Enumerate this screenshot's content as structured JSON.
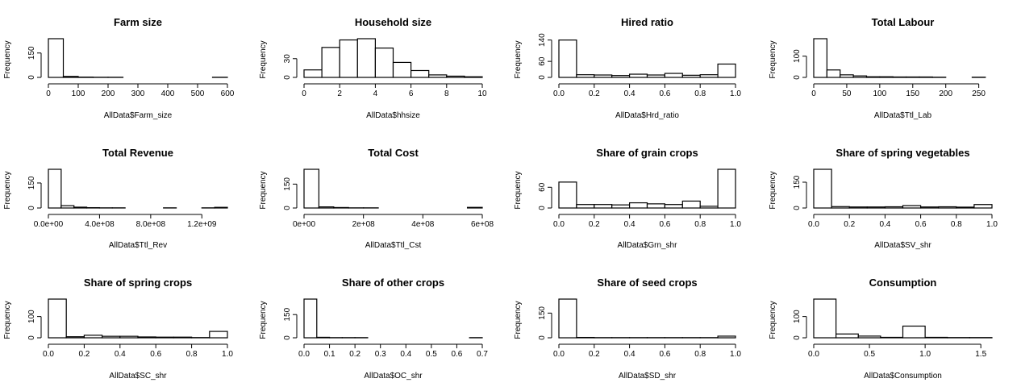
{
  "chart_data": [
    {
      "type": "bar",
      "title": "Farm size",
      "xlabel": "AllData$Farm_size",
      "ylabel": "Frequency",
      "xlim": [
        0,
        600
      ],
      "breaks": [
        0,
        50,
        100,
        150,
        200,
        250,
        300,
        350,
        400,
        450,
        500,
        550,
        600
      ],
      "values": [
        238,
        6,
        2,
        1,
        1,
        0,
        0,
        0,
        0,
        0,
        0,
        1
      ],
      "xticks": [
        0,
        100,
        200,
        300,
        400,
        500,
        600
      ],
      "xtick_labels": [
        "0",
        "100",
        "200",
        "300",
        "400",
        "500",
        "600"
      ],
      "yticks": [
        0,
        150
      ],
      "ytick_labels": [
        "0",
        "150"
      ],
      "ymax": 238
    },
    {
      "type": "bar",
      "title": "Household size",
      "xlabel": "AllData$hhsize",
      "ylabel": "Frequency",
      "xlim": [
        0,
        10
      ],
      "breaks": [
        0,
        1,
        2,
        3,
        4,
        5,
        6,
        7,
        8,
        9,
        10
      ],
      "values": [
        12,
        48,
        60,
        62,
        47,
        24,
        11,
        4,
        2,
        1
      ],
      "xticks": [
        0,
        2,
        4,
        6,
        8,
        10
      ],
      "xtick_labels": [
        "0",
        "2",
        "4",
        "6",
        "8",
        "10"
      ],
      "yticks": [
        0,
        30
      ],
      "ytick_labels": [
        "0",
        "30"
      ],
      "ymax": 62
    },
    {
      "type": "bar",
      "title": "Hired ratio",
      "xlabel": "AllData$Hrd_ratio",
      "ylabel": "Frequency",
      "xlim": [
        0,
        1
      ],
      "breaks": [
        0,
        0.1,
        0.2,
        0.3,
        0.4,
        0.5,
        0.6,
        0.7,
        0.8,
        0.9,
        1
      ],
      "values": [
        140,
        10,
        9,
        7,
        12,
        9,
        15,
        8,
        10,
        50
      ],
      "xticks": [
        0,
        0.2,
        0.4,
        0.6,
        0.8,
        1
      ],
      "xtick_labels": [
        "0.0",
        "0.2",
        "0.4",
        "0.6",
        "0.8",
        "1.0"
      ],
      "yticks": [
        0,
        60,
        140
      ],
      "ytick_labels": [
        "0",
        "60",
        "140"
      ],
      "ymax": 145
    },
    {
      "type": "bar",
      "title": "Total Labour",
      "xlabel": "AllData$Ttl_Lab",
      "ylabel": "Frequency",
      "xlim": [
        0,
        270
      ],
      "breaks": [
        0,
        20,
        40,
        60,
        80,
        100,
        120,
        140,
        160,
        180,
        200,
        220,
        240,
        260
      ],
      "values": [
        182,
        35,
        12,
        7,
        3,
        3,
        2,
        2,
        2,
        1,
        0,
        0,
        1
      ],
      "xticks": [
        0,
        50,
        100,
        150,
        200,
        250
      ],
      "xtick_labels": [
        "0",
        "50",
        "100",
        "150",
        "200",
        "250"
      ],
      "yticks": [
        0,
        100
      ],
      "ytick_labels": [
        "0",
        "100"
      ],
      "ymax": 182
    },
    {
      "type": "bar",
      "title": "Total Revenue",
      "xlabel": "AllData$Ttl_Rev",
      "ylabel": "Frequency",
      "xlim": [
        0,
        1400000000.0
      ],
      "breaks": [
        0,
        100000000.0,
        200000000.0,
        300000000.0,
        400000000.0,
        500000000.0,
        600000000.0,
        700000000.0,
        800000000.0,
        900000000.0,
        1000000000.0,
        1100000000.0,
        1200000000.0,
        1300000000.0,
        1400000000.0
      ],
      "values": [
        232,
        14,
        5,
        2,
        1,
        1,
        0,
        0,
        0,
        1,
        0,
        0,
        1,
        4
      ],
      "xticks": [
        0,
        400000000.0,
        800000000.0,
        1200000000.0
      ],
      "xtick_labels": [
        "0.0e+00",
        "4.0e+08",
        "8.0e+08",
        "1.2e+09"
      ],
      "yticks": [
        0,
        150
      ],
      "ytick_labels": [
        "0",
        "150"
      ],
      "ymax": 232
    },
    {
      "type": "bar",
      "title": "Total Cost",
      "xlabel": "AllData$Ttl_Cst",
      "ylabel": "Frequency",
      "xlim": [
        0,
        600000000.0
      ],
      "breaks": [
        0,
        50000000.0,
        100000000.0,
        150000000.0,
        200000000.0,
        250000000.0,
        300000000.0,
        350000000.0,
        400000000.0,
        450000000.0,
        500000000.0,
        550000000.0,
        600000000.0
      ],
      "values": [
        243,
        7,
        3,
        1,
        1,
        0,
        0,
        0,
        0,
        0,
        0,
        4
      ],
      "xticks": [
        0,
        200000000.0,
        400000000.0,
        600000000.0
      ],
      "xtick_labels": [
        "0e+00",
        "2e+08",
        "4e+08",
        "6e+08"
      ],
      "yticks": [
        0,
        150
      ],
      "ytick_labels": [
        "0",
        "150"
      ],
      "ymax": 243
    },
    {
      "type": "bar",
      "title": "Share of grain crops",
      "xlabel": "AllData$Grn_shr",
      "ylabel": "Frequency",
      "xlim": [
        0,
        1
      ],
      "breaks": [
        0,
        0.1,
        0.2,
        0.3,
        0.4,
        0.5,
        0.6,
        0.7,
        0.8,
        0.9,
        1
      ],
      "values": [
        75,
        10,
        10,
        9,
        15,
        12,
        10,
        20,
        5,
        112
      ],
      "xticks": [
        0,
        0.2,
        0.4,
        0.6,
        0.8,
        1
      ],
      "xtick_labels": [
        "0.0",
        "0.2",
        "0.4",
        "0.6",
        "0.8",
        "1.0"
      ],
      "yticks": [
        0,
        60
      ],
      "ytick_labels": [
        "0",
        "60"
      ],
      "ymax": 112
    },
    {
      "type": "bar",
      "title": "Share of spring vegetables",
      "xlabel": "AllData$SV_shr",
      "ylabel": "Frequency",
      "xlim": [
        0,
        1
      ],
      "breaks": [
        0,
        0.1,
        0.2,
        0.3,
        0.4,
        0.5,
        0.6,
        0.7,
        0.8,
        0.9,
        1
      ],
      "values": [
        225,
        8,
        6,
        6,
        7,
        14,
        6,
        7,
        5,
        20
      ],
      "xticks": [
        0,
        0.2,
        0.4,
        0.6,
        0.8,
        1
      ],
      "xtick_labels": [
        "0.0",
        "0.2",
        "0.4",
        "0.6",
        "0.8",
        "1.0"
      ],
      "yticks": [
        0,
        150
      ],
      "ytick_labels": [
        "0",
        "150"
      ],
      "ymax": 225
    },
    {
      "type": "bar",
      "title": "Share of spring crops",
      "xlabel": "AllData$SC_shr",
      "ylabel": "Frequency",
      "xlim": [
        0,
        1
      ],
      "breaks": [
        0,
        0.1,
        0.2,
        0.3,
        0.4,
        0.5,
        0.6,
        0.7,
        0.8,
        0.9,
        1
      ],
      "values": [
        182,
        5,
        12,
        7,
        7,
        4,
        3,
        3,
        1,
        30
      ],
      "xticks": [
        0,
        0.2,
        0.4,
        0.6,
        0.8,
        1
      ],
      "xtick_labels": [
        "0.0",
        "0.2",
        "0.4",
        "0.6",
        "0.8",
        "1.0"
      ],
      "yticks": [
        0,
        100
      ],
      "ytick_labels": [
        "0",
        "100"
      ],
      "ymax": 182
    },
    {
      "type": "bar",
      "title": "Share of other crops",
      "xlabel": "AllData$OC_shr",
      "ylabel": "Frequency",
      "xlim": [
        0,
        0.7
      ],
      "breaks": [
        0,
        0.05,
        0.1,
        0.15,
        0.2,
        0.25,
        0.3,
        0.35,
        0.4,
        0.45,
        0.5,
        0.55,
        0.6,
        0.65,
        0.7
      ],
      "values": [
        250,
        3,
        1,
        1,
        1,
        0,
        0,
        0,
        0,
        0,
        0,
        0,
        0,
        1
      ],
      "xticks": [
        0,
        0.1,
        0.2,
        0.3,
        0.4,
        0.5,
        0.6,
        0.7
      ],
      "xtick_labels": [
        "0.0",
        "0.1",
        "0.2",
        "0.3",
        "0.4",
        "0.5",
        "0.6",
        "0.7"
      ],
      "yticks": [
        0,
        150
      ],
      "ytick_labels": [
        "0",
        "150"
      ],
      "ymax": 250
    },
    {
      "type": "bar",
      "title": "Share of seed crops",
      "xlabel": "AllData$SD_shr",
      "ylabel": "Frequency",
      "xlim": [
        0,
        1
      ],
      "breaks": [
        0,
        0.1,
        0.2,
        0.3,
        0.4,
        0.5,
        0.6,
        0.7,
        0.8,
        0.9,
        1
      ],
      "values": [
        235,
        2,
        1,
        1,
        1,
        1,
        1,
        1,
        1,
        10
      ],
      "xticks": [
        0,
        0.2,
        0.4,
        0.6,
        0.8,
        1
      ],
      "xtick_labels": [
        "0.0",
        "0.2",
        "0.4",
        "0.6",
        "0.8",
        "1.0"
      ],
      "yticks": [
        0,
        150
      ],
      "ytick_labels": [
        "0",
        "150"
      ],
      "ymax": 235
    },
    {
      "type": "bar",
      "title": "Consumption",
      "xlabel": "AllData$Consumption",
      "ylabel": "Frequency",
      "xlim": [
        0,
        1.6
      ],
      "breaks": [
        0,
        0.2,
        0.4,
        0.6,
        0.8,
        1.0,
        1.2,
        1.4,
        1.6
      ],
      "values": [
        182,
        18,
        8,
        2,
        55,
        2,
        1,
        1
      ],
      "xticks": [
        0,
        0.5,
        1,
        1.5
      ],
      "xtick_labels": [
        "0.0",
        "0.5",
        "1.0",
        "1.5"
      ],
      "yticks": [
        0,
        100
      ],
      "ytick_labels": [
        "0",
        "100"
      ],
      "ymax": 182
    }
  ]
}
